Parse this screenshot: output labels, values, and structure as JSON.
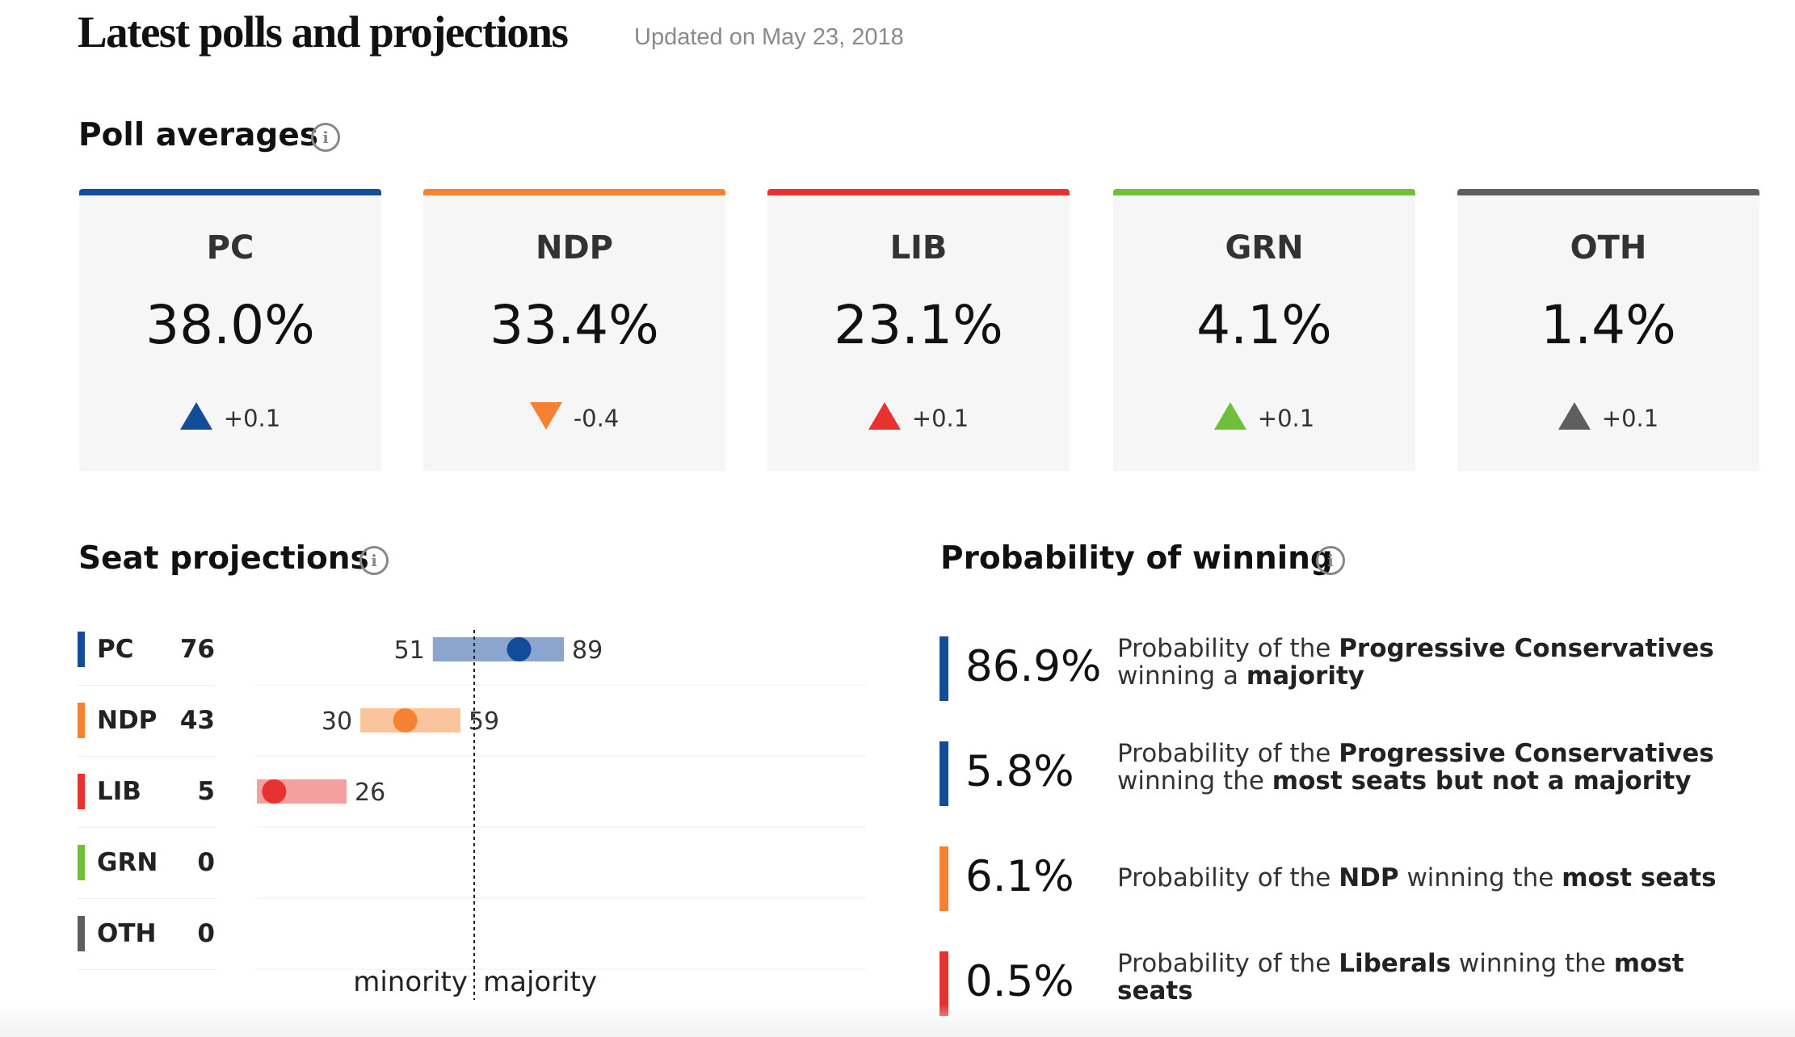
{
  "header": {
    "title": "Latest polls and projections",
    "updated": "Updated on May 23, 2018"
  },
  "poll_averages": {
    "title": "Poll averages",
    "info_icon": "i",
    "cards": [
      {
        "party": "PC",
        "value": "38.0%",
        "change": "+0.1",
        "direction": "up",
        "color": "#124c9a"
      },
      {
        "party": "NDP",
        "value": "33.4%",
        "change": "-0.4",
        "direction": "down",
        "color": "#f58233"
      },
      {
        "party": "LIB",
        "value": "23.1%",
        "change": "+0.1",
        "direction": "up",
        "color": "#e8322f"
      },
      {
        "party": "GRN",
        "value": "4.1%",
        "change": "+0.1",
        "direction": "up",
        "color": "#6fbf3b"
      },
      {
        "party": "OTH",
        "value": "1.4%",
        "change": "+0.1",
        "direction": "up",
        "color": "#5f5f5f"
      }
    ]
  },
  "seat_projections": {
    "title": "Seat projections",
    "info_icon": "i",
    "rows": [
      {
        "party": "PC",
        "seats": "76",
        "color": "#124c9a"
      },
      {
        "party": "NDP",
        "seats": "43",
        "color": "#f58233"
      },
      {
        "party": "LIB",
        "seats": "5",
        "color": "#e8322f"
      },
      {
        "party": "GRN",
        "seats": "0",
        "color": "#6fbf3b"
      },
      {
        "party": "OTH",
        "seats": "0",
        "color": "#5f5f5f"
      }
    ]
  },
  "chart_data": {
    "type": "range",
    "title": "Seat projections",
    "categories": [
      "PC",
      "NDP",
      "LIB",
      "GRN",
      "OTH"
    ],
    "series": [
      {
        "name": "PC",
        "low": 51,
        "high": 89,
        "point": 76,
        "bar_color": "#8aa6cf",
        "dot_color": "#124c9a"
      },
      {
        "name": "NDP",
        "low": 30,
        "high": 59,
        "point": 43,
        "bar_color": "#fac59c",
        "dot_color": "#f58233"
      },
      {
        "name": "LIB",
        "low": 0,
        "high": 26,
        "point": 5,
        "bar_color": "#f4a0a0",
        "dot_color": "#e8322f"
      }
    ],
    "range_labels": [
      [
        "51",
        "89"
      ],
      [
        "30",
        "59"
      ],
      [
        "",
        "26"
      ]
    ],
    "threshold": 63,
    "threshold_labels": [
      "minority",
      "majority"
    ],
    "xlim": [
      0,
      124
    ]
  },
  "probability": {
    "title": "Probability of winning",
    "info_icon": "i",
    "items": [
      {
        "value": "86.9%",
        "color": "#124c9a",
        "parts": [
          [
            "Probability of the ",
            false
          ],
          [
            "Progressive Conservatives",
            true
          ],
          [
            " winning a ",
            false
          ],
          [
            "majority",
            true
          ]
        ]
      },
      {
        "value": "5.8%",
        "color": "#124c9a",
        "parts": [
          [
            "Probability of the ",
            false
          ],
          [
            "Progressive Conservatives",
            true
          ],
          [
            " winning the ",
            false
          ],
          [
            "most seats but not a majority",
            true
          ]
        ]
      },
      {
        "value": "6.1%",
        "color": "#f58233",
        "parts": [
          [
            "Probability of the ",
            false
          ],
          [
            "NDP",
            true
          ],
          [
            " winning the ",
            false
          ],
          [
            "most seats",
            true
          ]
        ]
      },
      {
        "value": "0.5%",
        "color": "#e8322f",
        "parts": [
          [
            "Probability of the ",
            false
          ],
          [
            "Liberals",
            true
          ],
          [
            " winning the ",
            false
          ],
          [
            "most seats",
            true
          ]
        ]
      }
    ]
  }
}
